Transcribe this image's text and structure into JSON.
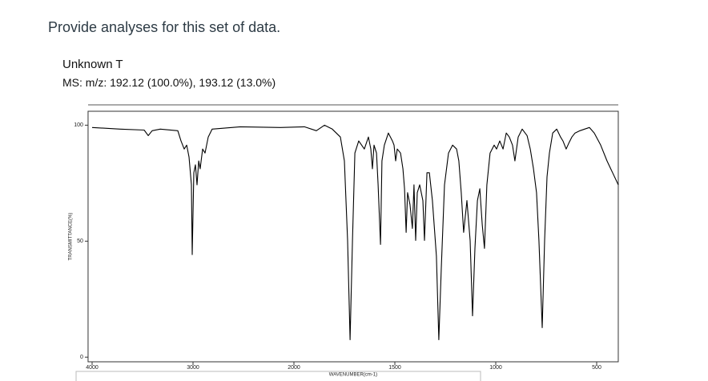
{
  "question": "Provide analyses for this set of data.",
  "spectrum_title": "Unknown T",
  "ms": "MS: m/z: 192.12 (100.0%), 193.12 (13.0%)",
  "chart_data": {
    "type": "line",
    "xlabel": "WAVENUMBER(cm-1)",
    "ylabel": "TRANSMITTANCE(%)",
    "color": "#000000",
    "x": [
      4000,
      3722,
      3484,
      3444,
      3405,
      3325,
      3151,
      3119,
      3087,
      3063,
      3040,
      3016,
      3008,
      2992,
      2976,
      2960,
      2944,
      2929,
      2905,
      2881,
      2849,
      2810,
      2532,
      2135,
      1948,
      1889,
      1849,
      1810,
      1770,
      1750,
      1734,
      1722,
      1710,
      1698,
      1679,
      1651,
      1631,
      1619,
      1611,
      1603,
      1591,
      1583,
      1571,
      1564,
      1552,
      1532,
      1512,
      1504,
      1496,
      1488,
      1472,
      1460,
      1452,
      1444,
      1437,
      1425,
      1413,
      1405,
      1397,
      1389,
      1377,
      1361,
      1353,
      1341,
      1329,
      1314,
      1294,
      1282,
      1270,
      1254,
      1234,
      1214,
      1194,
      1183,
      1171,
      1159,
      1143,
      1127,
      1115,
      1103,
      1091,
      1079,
      1067,
      1056,
      1044,
      1028,
      1008,
      996,
      980,
      964,
      948,
      933,
      917,
      905,
      889,
      869,
      845,
      829,
      813,
      798,
      786,
      770,
      758,
      746,
      734,
      718,
      698,
      679,
      667,
      651,
      639,
      623,
      607,
      583,
      560,
      536,
      512,
      480,
      449,
      421,
      393
    ],
    "values": [
      99.0,
      98.3,
      97.9,
      95.5,
      97.6,
      98.3,
      97.6,
      93.2,
      89.7,
      91.4,
      86.3,
      74.3,
      44.2,
      79.5,
      82.9,
      74.3,
      84.6,
      81.2,
      89.7,
      88.0,
      94.9,
      98.3,
      99.3,
      99.0,
      99.3,
      97.6,
      100,
      98.3,
      94.9,
      84.6,
      50.3,
      7.5,
      50.3,
      88.0,
      93.2,
      89.7,
      94.9,
      89.7,
      81.2,
      91.4,
      88.0,
      74.3,
      48.6,
      84.6,
      91.4,
      96.6,
      93.2,
      91.4,
      84.6,
      89.7,
      88.0,
      81.2,
      72.6,
      53.8,
      70.9,
      65.8,
      55.5,
      74.3,
      50.3,
      70.9,
      74.3,
      67.5,
      50.3,
      79.5,
      79.5,
      67.5,
      43.5,
      7.5,
      38.4,
      74.3,
      88.0,
      91.4,
      89.7,
      84.6,
      70.9,
      53.8,
      67.5,
      50.3,
      17.8,
      46.9,
      67.5,
      72.6,
      57.2,
      46.9,
      74.3,
      88.0,
      91.4,
      89.7,
      93.2,
      89.7,
      96.6,
      94.9,
      91.4,
      84.6,
      94.9,
      98.3,
      95.5,
      89.7,
      81.2,
      70.9,
      50.3,
      12.7,
      50.3,
      77.7,
      88.0,
      96.6,
      98.3,
      94.9,
      93.2,
      89.7,
      92.1,
      94.9,
      96.6,
      97.6,
      98.3,
      99.0,
      96.6,
      91.4,
      84.6,
      79.5,
      74.3
    ],
    "xlim": [
      4040,
      393
    ],
    "ylim": [
      -2,
      106
    ],
    "xticks": [
      4000,
      3000,
      2000,
      1500,
      1000,
      500
    ],
    "yticks": [
      0,
      50,
      100
    ]
  }
}
